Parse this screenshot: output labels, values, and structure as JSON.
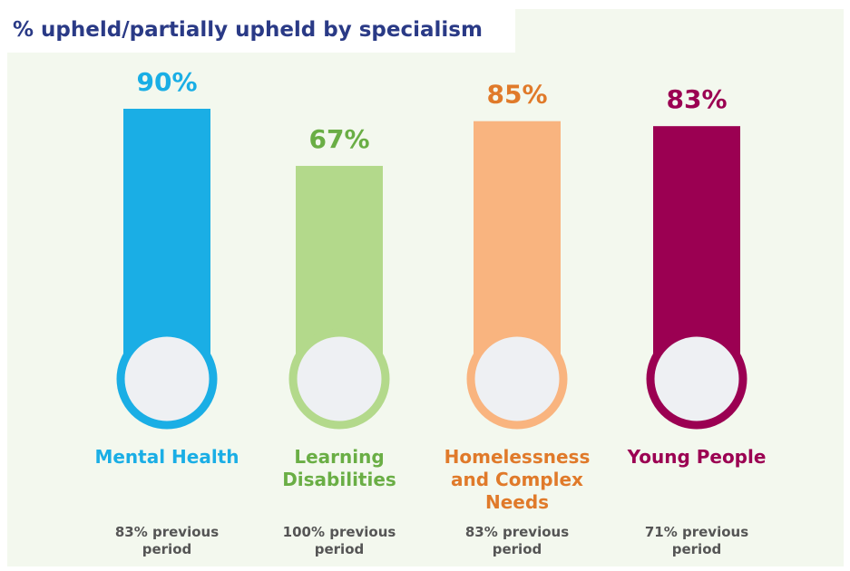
{
  "chart_data": {
    "type": "bar",
    "title": "% upheld/partially upheld by specialism",
    "categories": [
      "Mental Health",
      "Learning Disabilities",
      "Homelessness and Complex Needs",
      "Young People"
    ],
    "values": [
      90,
      67,
      85,
      83
    ],
    "value_labels": [
      "90%",
      "67%",
      "85%",
      "83%"
    ],
    "annotations": [
      "83% previous period",
      "100% previous period",
      "83% previous period",
      "71% previous period"
    ],
    "colors": [
      "#1aaee5",
      "#b3d98b",
      "#f9b47f",
      "#9b0052"
    ],
    "label_colors": [
      "#1aaee5",
      "#6aae45",
      "#e07a2a",
      "#9b0052"
    ]
  }
}
